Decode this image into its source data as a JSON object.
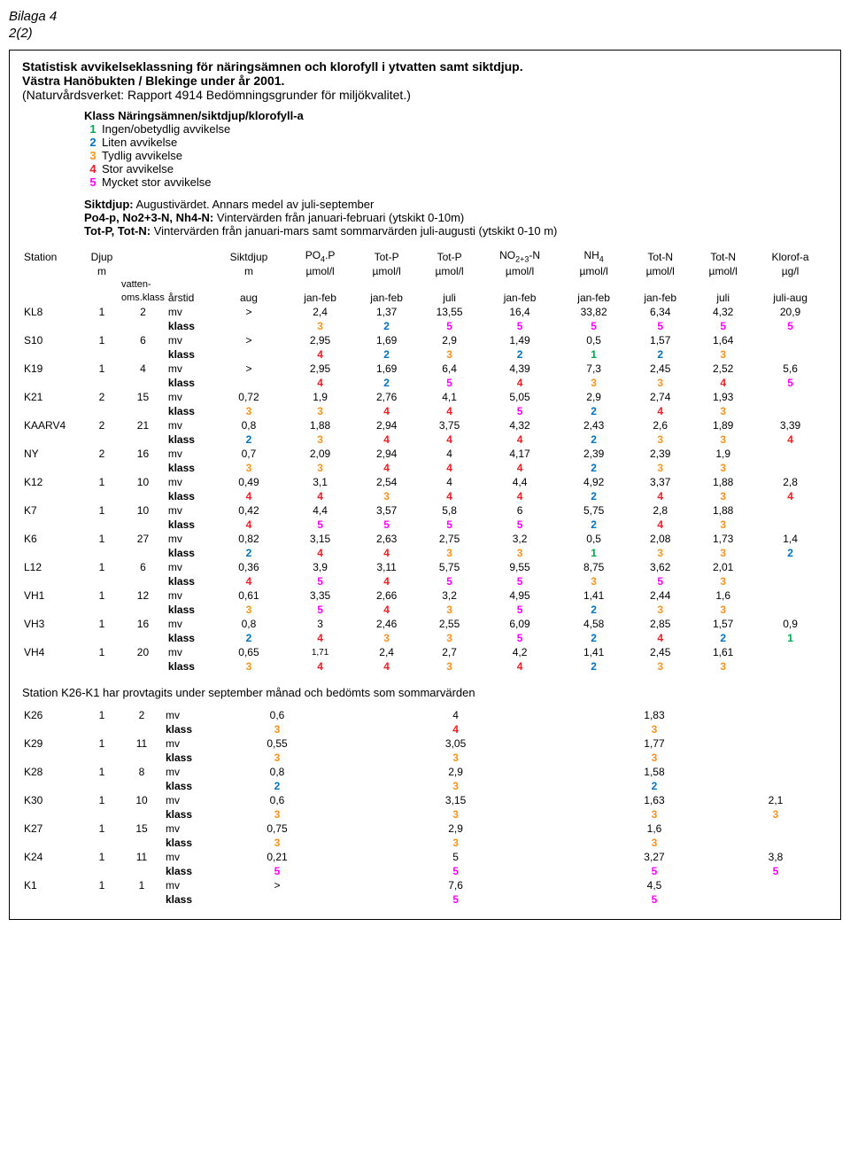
{
  "header": {
    "bilaga": "Bilaga 4",
    "page": "2(2)"
  },
  "box": {
    "title": "Statistisk avvikelseklassning för näringsämnen och klorofyll i ytvatten samt siktdjup.",
    "subtitle": "Västra Hanöbukten / Blekinge under år 2001.",
    "note": "(Naturvårdsverket: Rapport 4914 Bedömningsgrunder för miljökvalitet.)",
    "klass_header": "Klass  Näringsämnen/siktdjup/klorofyll-a",
    "klass_items": [
      {
        "n": "1",
        "label": "Ingen/obetydlig avvikelse",
        "color": "#00a651"
      },
      {
        "n": "2",
        "label": "Liten avvikelse",
        "color": "#0072bc"
      },
      {
        "n": "3",
        "label": "Tydlig avvikelse",
        "color": "#f7941d"
      },
      {
        "n": "4",
        "label": "Stor avvikelse",
        "color": "#ed1c24"
      },
      {
        "n": "5",
        "label": "Mycket stor avvikelse",
        "color": "#ff00ff"
      }
    ],
    "siktdjup_lines": [
      [
        {
          "t": "Siktdjup:",
          "b": true
        },
        {
          "t": " Augustivärdet. Annars medel av juli-september",
          "b": false
        }
      ],
      [
        {
          "t": "Po4-p, No2+3-N, Nh4-N:",
          "b": true
        },
        {
          "t": " Vintervärden från januari-februari (ytskikt 0-10m)",
          "b": false
        }
      ],
      [
        {
          "t": "Tot-P, Tot-N:",
          "b": true
        },
        {
          "t": " Vintervärden från januari-mars samt sommarvärden juli-augusti (ytskikt 0-10 m)",
          "b": false
        }
      ]
    ]
  },
  "columns1": [
    "Station",
    "Djup",
    "",
    "",
    "Siktdjup",
    "PO4.P",
    "Tot-P",
    "Tot-P",
    "NO2+3-N",
    "NH4",
    "Tot-N",
    "Tot-N",
    "Klorof-a"
  ],
  "columns2": [
    "",
    "m",
    "",
    "",
    "m",
    "µmol/l",
    "µmol/l",
    "µmol/l",
    "µmol/l",
    "µmol/l",
    "µmol/l",
    "µmol/l",
    "µg/l"
  ],
  "columns3_label_left": "vatten-",
  "columns3_label_left2": "oms.klass",
  "columns3": [
    "",
    "",
    "",
    "årstid",
    "aug",
    "jan-feb",
    "jan-feb",
    "juli",
    "jan-feb",
    "jan-feb",
    "jan-feb",
    "juli",
    "juli-aug"
  ],
  "class_colors": {
    "1": "#00a651",
    "2": "#0072bc",
    "3": "#f7941d",
    "4": "#ed1c24",
    "5": "#ff00ff"
  },
  "stations": [
    {
      "name": "KL8",
      "a": "1",
      "b": "2",
      "mv": [
        ">",
        "2,4",
        "1,37",
        "13,55",
        "16,4",
        "33,82",
        "6,34",
        "4,32",
        "20,9"
      ],
      "klass": [
        "",
        "3",
        "2",
        "5",
        "5",
        "5",
        "5",
        "5",
        "5"
      ]
    },
    {
      "name": "S10",
      "a": "1",
      "b": "6",
      "mv": [
        ">",
        "2,95",
        "1,69",
        "2,9",
        "1,49",
        "0,5",
        "1,57",
        "1,64",
        ""
      ],
      "klass": [
        "",
        "4",
        "2",
        "3",
        "2",
        "1",
        "2",
        "3",
        ""
      ]
    },
    {
      "name": "K19",
      "a": "1",
      "b": "4",
      "mv": [
        ">",
        "2,95",
        "1,69",
        "6,4",
        "4,39",
        "7,3",
        "2,45",
        "2,52",
        "5,6"
      ],
      "klass": [
        "",
        "4",
        "2",
        "5",
        "4",
        "3",
        "3",
        "4",
        "5"
      ]
    },
    {
      "name": "K21",
      "a": "2",
      "b": "15",
      "mv": [
        "0,72",
        "1,9",
        "2,76",
        "4,1",
        "5,05",
        "2,9",
        "2,74",
        "1,93",
        ""
      ],
      "klass": [
        "3",
        "3",
        "4",
        "4",
        "5",
        "2",
        "4",
        "3",
        ""
      ]
    },
    {
      "name": "KAARV4",
      "a": "2",
      "b": "21",
      "mv": [
        "0,8",
        "1,88",
        "2,94",
        "3,75",
        "4,32",
        "2,43",
        "2,6",
        "1,89",
        "3,39"
      ],
      "klass": [
        "2",
        "3",
        "4",
        "4",
        "4",
        "2",
        "3",
        "3",
        "4"
      ]
    },
    {
      "name": "NY",
      "a": "2",
      "b": "16",
      "mv": [
        "0,7",
        "2,09",
        "2,94",
        "4",
        "4,17",
        "2,39",
        "2,39",
        "1,9",
        ""
      ],
      "klass": [
        "3",
        "3",
        "4",
        "4",
        "4",
        "2",
        "3",
        "3",
        ""
      ]
    },
    {
      "name": "K12",
      "a": "1",
      "b": "10",
      "mv": [
        "0,49",
        "3,1",
        "2,54",
        "4",
        "4,4",
        "4,92",
        "3,37",
        "1,88",
        "2,8"
      ],
      "klass": [
        "4",
        "4",
        "3",
        "4",
        "4",
        "2",
        "4",
        "3",
        "4"
      ]
    },
    {
      "name": "K7",
      "a": "1",
      "b": "10",
      "mv": [
        "0,42",
        "4,4",
        "3,57",
        "5,8",
        "6",
        "5,75",
        "2,8",
        "1,88",
        ""
      ],
      "klass": [
        "4",
        "5",
        "5",
        "5",
        "5",
        "2",
        "4",
        "3",
        ""
      ]
    },
    {
      "name": "K6",
      "a": "1",
      "b": "27",
      "mv": [
        "0,82",
        "3,15",
        "2,63",
        "2,75",
        "3,2",
        "0,5",
        "2,08",
        "1,73",
        "1,4"
      ],
      "klass": [
        "2",
        "4",
        "4",
        "3",
        "3",
        "1",
        "3",
        "3",
        "2"
      ]
    },
    {
      "name": "L12",
      "a": "1",
      "b": "6",
      "mv": [
        "0,36",
        "3,9",
        "3,11",
        "5,75",
        "9,55",
        "8,75",
        "3,62",
        "2,01",
        ""
      ],
      "klass": [
        "4",
        "5",
        "4",
        "5",
        "5",
        "3",
        "5",
        "3",
        ""
      ]
    },
    {
      "name": "VH1",
      "a": "1",
      "b": "12",
      "mv": [
        "0,61",
        "3,35",
        "2,66",
        "3,2",
        "4,95",
        "1,41",
        "2,44",
        "1,6",
        ""
      ],
      "klass": [
        "3",
        "5",
        "4",
        "3",
        "5",
        "2",
        "3",
        "3",
        ""
      ]
    },
    {
      "name": "VH3",
      "a": "1",
      "b": "16",
      "mv": [
        "0,8",
        "3",
        "2,46",
        "2,55",
        "6,09",
        "4,58",
        "2,85",
        "1,57",
        "0,9"
      ],
      "klass": [
        "2",
        "4",
        "3",
        "3",
        "5",
        "2",
        "4",
        "2",
        "1"
      ]
    },
    {
      "name": "VH4",
      "a": "1",
      "b": "20",
      "mv": [
        "0,65",
        "1,71",
        "2,4",
        "2,7",
        "4,2",
        "1,41",
        "2,45",
        "1,61",
        ""
      ],
      "klass": [
        "3",
        "4",
        "4",
        "3",
        "4",
        "2",
        "3",
        "3",
        ""
      ]
    }
  ],
  "mv_small_font": {
    "VH4": [
      1
    ]
  },
  "footnote": "Station K26-K1 har provtagits under september månad och bedömts som sommarvärden",
  "stations2": [
    {
      "name": "K26",
      "a": "1",
      "b": "2",
      "mv": [
        "0,6",
        "",
        "",
        "4",
        "",
        "",
        "",
        "1,83",
        ""
      ],
      "klass": [
        "3",
        "",
        "",
        "4",
        "",
        "",
        "",
        "3",
        ""
      ]
    },
    {
      "name": "K29",
      "a": "1",
      "b": "11",
      "mv": [
        "0,55",
        "",
        "",
        "3,05",
        "",
        "",
        "",
        "1,77",
        ""
      ],
      "klass": [
        "3",
        "",
        "",
        "3",
        "",
        "",
        "",
        "3",
        ""
      ]
    },
    {
      "name": "K28",
      "a": "1",
      "b": "8",
      "mv": [
        "0,8",
        "",
        "",
        "2,9",
        "",
        "",
        "",
        "1,58",
        ""
      ],
      "klass": [
        "2",
        "",
        "",
        "3",
        "",
        "",
        "",
        "2",
        ""
      ]
    },
    {
      "name": "K30",
      "a": "1",
      "b": "10",
      "mv": [
        "0,6",
        "",
        "",
        "3,15",
        "",
        "",
        "",
        "1,63",
        "2,1"
      ],
      "klass": [
        "3",
        "",
        "",
        "3",
        "",
        "",
        "",
        "3",
        "3"
      ]
    },
    {
      "name": "K27",
      "a": "1",
      "b": "15",
      "mv": [
        "0,75",
        "",
        "",
        "2,9",
        "",
        "",
        "",
        "1,6",
        ""
      ],
      "klass": [
        "3",
        "",
        "",
        "3",
        "",
        "",
        "",
        "3",
        ""
      ]
    },
    {
      "name": "K24",
      "a": "1",
      "b": "11",
      "mv": [
        "0,21",
        "",
        "",
        "5",
        "",
        "",
        "",
        "3,27",
        "3,8"
      ],
      "klass": [
        "5",
        "",
        "",
        "5",
        "",
        "",
        "",
        "5",
        "5"
      ]
    },
    {
      "name": "K1",
      "a": "1",
      "b": "1",
      "mv": [
        ">",
        "",
        "",
        "7,6",
        "",
        "",
        "",
        "4,5",
        ""
      ],
      "klass": [
        "",
        "",
        "",
        "5",
        "",
        "",
        "",
        "5",
        ""
      ]
    }
  ],
  "labels": {
    "mv": "mv",
    "klass": "klass"
  }
}
